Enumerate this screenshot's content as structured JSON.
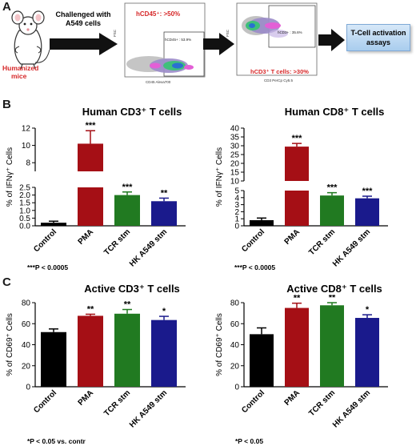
{
  "panels": {
    "a": {
      "letter": "A",
      "mouse_label_1": "Humanized",
      "mouse_label_2": "mice",
      "challenge_line_1": "Challenged with",
      "challenge_line_2": "A549 cells",
      "plot1_label": "hCD45⁺: >50%",
      "plot1_gate": "hCD45+ : 53.9%",
      "plot1_xaxis": "CD45 Alexa700",
      "plot1_yaxis": "FSC",
      "plot2_label": "hCD3⁺ T cells: >30%",
      "plot2_gate": "hCD3+ : 35.6%",
      "plot2_xaxis": "CD3 PerCp Cy5.5",
      "plot2_yaxis": "FSC",
      "assay_line_1": "T-Cell activation",
      "assay_line_2": "assays"
    },
    "b": {
      "letter": "B"
    },
    "c": {
      "letter": "C"
    }
  },
  "colors": {
    "control": "#000000",
    "pma": "#a50f15",
    "tcr": "#217a21",
    "hk": "#1a1a8c",
    "red_text": "#d62728"
  },
  "chart_data": [
    {
      "id": "b1",
      "type": "bar",
      "title": "Human CD3⁺ T cells",
      "ylabel": "% of IFNγ⁺ Cells",
      "categories": [
        "Control",
        "PMA",
        "TCR stm",
        "HK A549 stm"
      ],
      "values": [
        0.2,
        10.2,
        2.0,
        1.6
      ],
      "errors": [
        0.1,
        1.5,
        0.2,
        0.2
      ],
      "significance": [
        "",
        "***",
        "***",
        "**"
      ],
      "broken_axis": true,
      "lower_range": [
        0,
        2.5
      ],
      "lower_ticks": [
        "0.0",
        "0.5",
        "1.0",
        "1.5",
        "2.0",
        "2.5"
      ],
      "upper_range": [
        7,
        12
      ],
      "upper_ticks": [
        "8",
        "10",
        "12"
      ],
      "footnote": "***P < 0.0005"
    },
    {
      "id": "b2",
      "type": "bar",
      "title": "Human CD8⁺ T cells",
      "ylabel": "% of IFNγ⁺ Cells",
      "categories": [
        "Control",
        "PMA",
        "TCR stm",
        "HK A549 stm"
      ],
      "values": [
        0.8,
        29.5,
        4.3,
        3.9
      ],
      "errors": [
        0.3,
        1.8,
        0.4,
        0.3
      ],
      "significance": [
        "",
        "***",
        "***",
        "***"
      ],
      "broken_axis": true,
      "lower_range": [
        0,
        5
      ],
      "lower_ticks": [
        "0",
        "1",
        "2",
        "3",
        "4",
        "5"
      ],
      "upper_range": [
        10,
        40
      ],
      "upper_ticks": [
        "10",
        "15",
        "20",
        "25",
        "30",
        "35",
        "40"
      ],
      "footnote": "***P < 0.0005"
    },
    {
      "id": "c1",
      "type": "bar",
      "title": "Active CD3⁺ T cells",
      "ylabel": "% of CD69⁺ Cells",
      "categories": [
        "Control",
        "PMA",
        "TCR stm",
        "HK A549 stm"
      ],
      "values": [
        52,
        67.5,
        69.5,
        63.5
      ],
      "errors": [
        3,
        1.5,
        4,
        3.5
      ],
      "significance": [
        "",
        "**",
        "**",
        "*"
      ],
      "ylim": [
        0,
        80
      ],
      "ticks": [
        "0",
        "20",
        "40",
        "60",
        "80"
      ],
      "footnote": "*P < 0.05 vs. contr"
    },
    {
      "id": "c2",
      "type": "bar",
      "title": "Active CD8⁺ T cells",
      "ylabel": "% of CD69⁺ Cells",
      "categories": [
        "Control",
        "PMA",
        "TCR stm",
        "HK A549 stm"
      ],
      "values": [
        50,
        75,
        77.5,
        65.5
      ],
      "errors": [
        6,
        4.5,
        2.5,
        3
      ],
      "significance": [
        "",
        "**",
        "**",
        "*"
      ],
      "ylim": [
        0,
        80
      ],
      "ticks": [
        "0",
        "20",
        "40",
        "60",
        "80"
      ],
      "footnote": "*P < 0.05"
    }
  ]
}
